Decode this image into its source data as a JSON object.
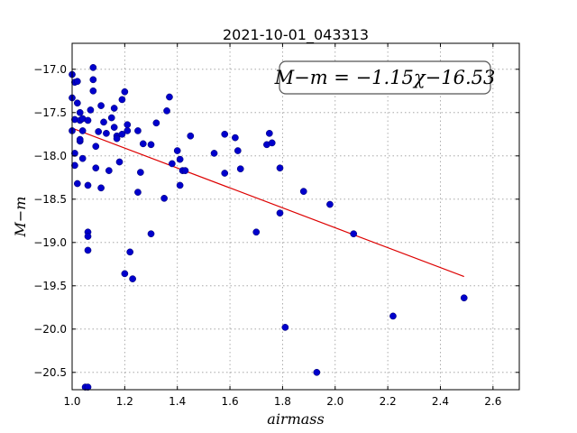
{
  "chart_data": {
    "type": "scatter",
    "title": "2021-10-01_043313",
    "xlabel": "airmass",
    "ylabel": "M−m",
    "xlim": [
      1.0,
      2.7
    ],
    "ylim": [
      -20.7,
      -16.7
    ],
    "x_ticks": [
      1.0,
      1.2,
      1.4,
      1.6,
      1.8,
      2.0,
      2.2,
      2.4,
      2.6
    ],
    "x_tick_labels": [
      "1.0",
      "1.2",
      "1.4",
      "1.6",
      "1.8",
      "2.0",
      "2.2",
      "2.4",
      "2.6"
    ],
    "y_ticks": [
      -17.0,
      -17.5,
      -18.0,
      -18.5,
      -19.0,
      -19.5,
      -20.0,
      -20.5
    ],
    "y_tick_labels": [
      "−17.0",
      "−17.5",
      "−18.0",
      "−18.5",
      "−19.0",
      "−19.5",
      "−20.0",
      "−20.5"
    ],
    "grid": true,
    "annotation": "M−m = −1.15χ−16.53",
    "annotation_position": "top-right",
    "colors": {
      "points": "#0000cc",
      "fit": "#dd0000",
      "grid": "#999999"
    },
    "fit": {
      "slope": -1.15,
      "intercept": -16.53,
      "x_range": [
        1.0,
        2.49
      ]
    },
    "series": [
      {
        "type": "scatter",
        "x": [
          1.0,
          1.0,
          1.0,
          1.01,
          1.01,
          1.01,
          1.01,
          1.02,
          1.02,
          1.02,
          1.03,
          1.03,
          1.03,
          1.03,
          1.04,
          1.04,
          1.04,
          1.05,
          1.06,
          1.06,
          1.06,
          1.06,
          1.06,
          1.06,
          1.07,
          1.08,
          1.08,
          1.08,
          1.09,
          1.09,
          1.1,
          1.11,
          1.11,
          1.12,
          1.13,
          1.14,
          1.15,
          1.16,
          1.16,
          1.17,
          1.17,
          1.18,
          1.19,
          1.19,
          1.2,
          1.2,
          1.21,
          1.21,
          1.22,
          1.23,
          1.25,
          1.25,
          1.26,
          1.27,
          1.3,
          1.3,
          1.32,
          1.35,
          1.36,
          1.37,
          1.38,
          1.4,
          1.41,
          1.41,
          1.42,
          1.43,
          1.45,
          1.54,
          1.58,
          1.58,
          1.62,
          1.63,
          1.64,
          1.7,
          1.74,
          1.75,
          1.76,
          1.79,
          1.79,
          1.81,
          1.88,
          1.93,
          1.98,
          2.07,
          2.22,
          2.49
        ],
        "y": [
          -17.06,
          -17.33,
          -17.71,
          -17.15,
          -17.58,
          -17.97,
          -18.11,
          -17.14,
          -17.39,
          -18.32,
          -17.5,
          -17.59,
          -17.83,
          -17.81,
          -17.57,
          -17.71,
          -18.03,
          -20.67,
          -17.59,
          -18.34,
          -18.88,
          -18.93,
          -19.09,
          -20.67,
          -17.47,
          -16.98,
          -17.12,
          -17.25,
          -17.89,
          -18.14,
          -17.72,
          -17.42,
          -18.37,
          -17.61,
          -17.74,
          -18.17,
          -17.56,
          -17.45,
          -17.67,
          -17.77,
          -17.8,
          -18.07,
          -17.35,
          -17.75,
          -17.26,
          -19.36,
          -17.64,
          -17.71,
          -19.11,
          -19.42,
          -17.71,
          -18.42,
          -18.19,
          -17.86,
          -18.9,
          -17.87,
          -17.62,
          -18.49,
          -17.48,
          -17.32,
          -18.09,
          -17.94,
          -18.04,
          -18.34,
          -18.17,
          -18.17,
          -17.77,
          -17.97,
          -17.75,
          -18.2,
          -17.79,
          -17.94,
          -18.15,
          -18.88,
          -17.87,
          -17.74,
          -17.85,
          -18.14,
          -18.66,
          -19.98,
          -18.41,
          -20.5,
          -18.56,
          -18.9,
          -19.85,
          -19.64
        ]
      }
    ]
  }
}
